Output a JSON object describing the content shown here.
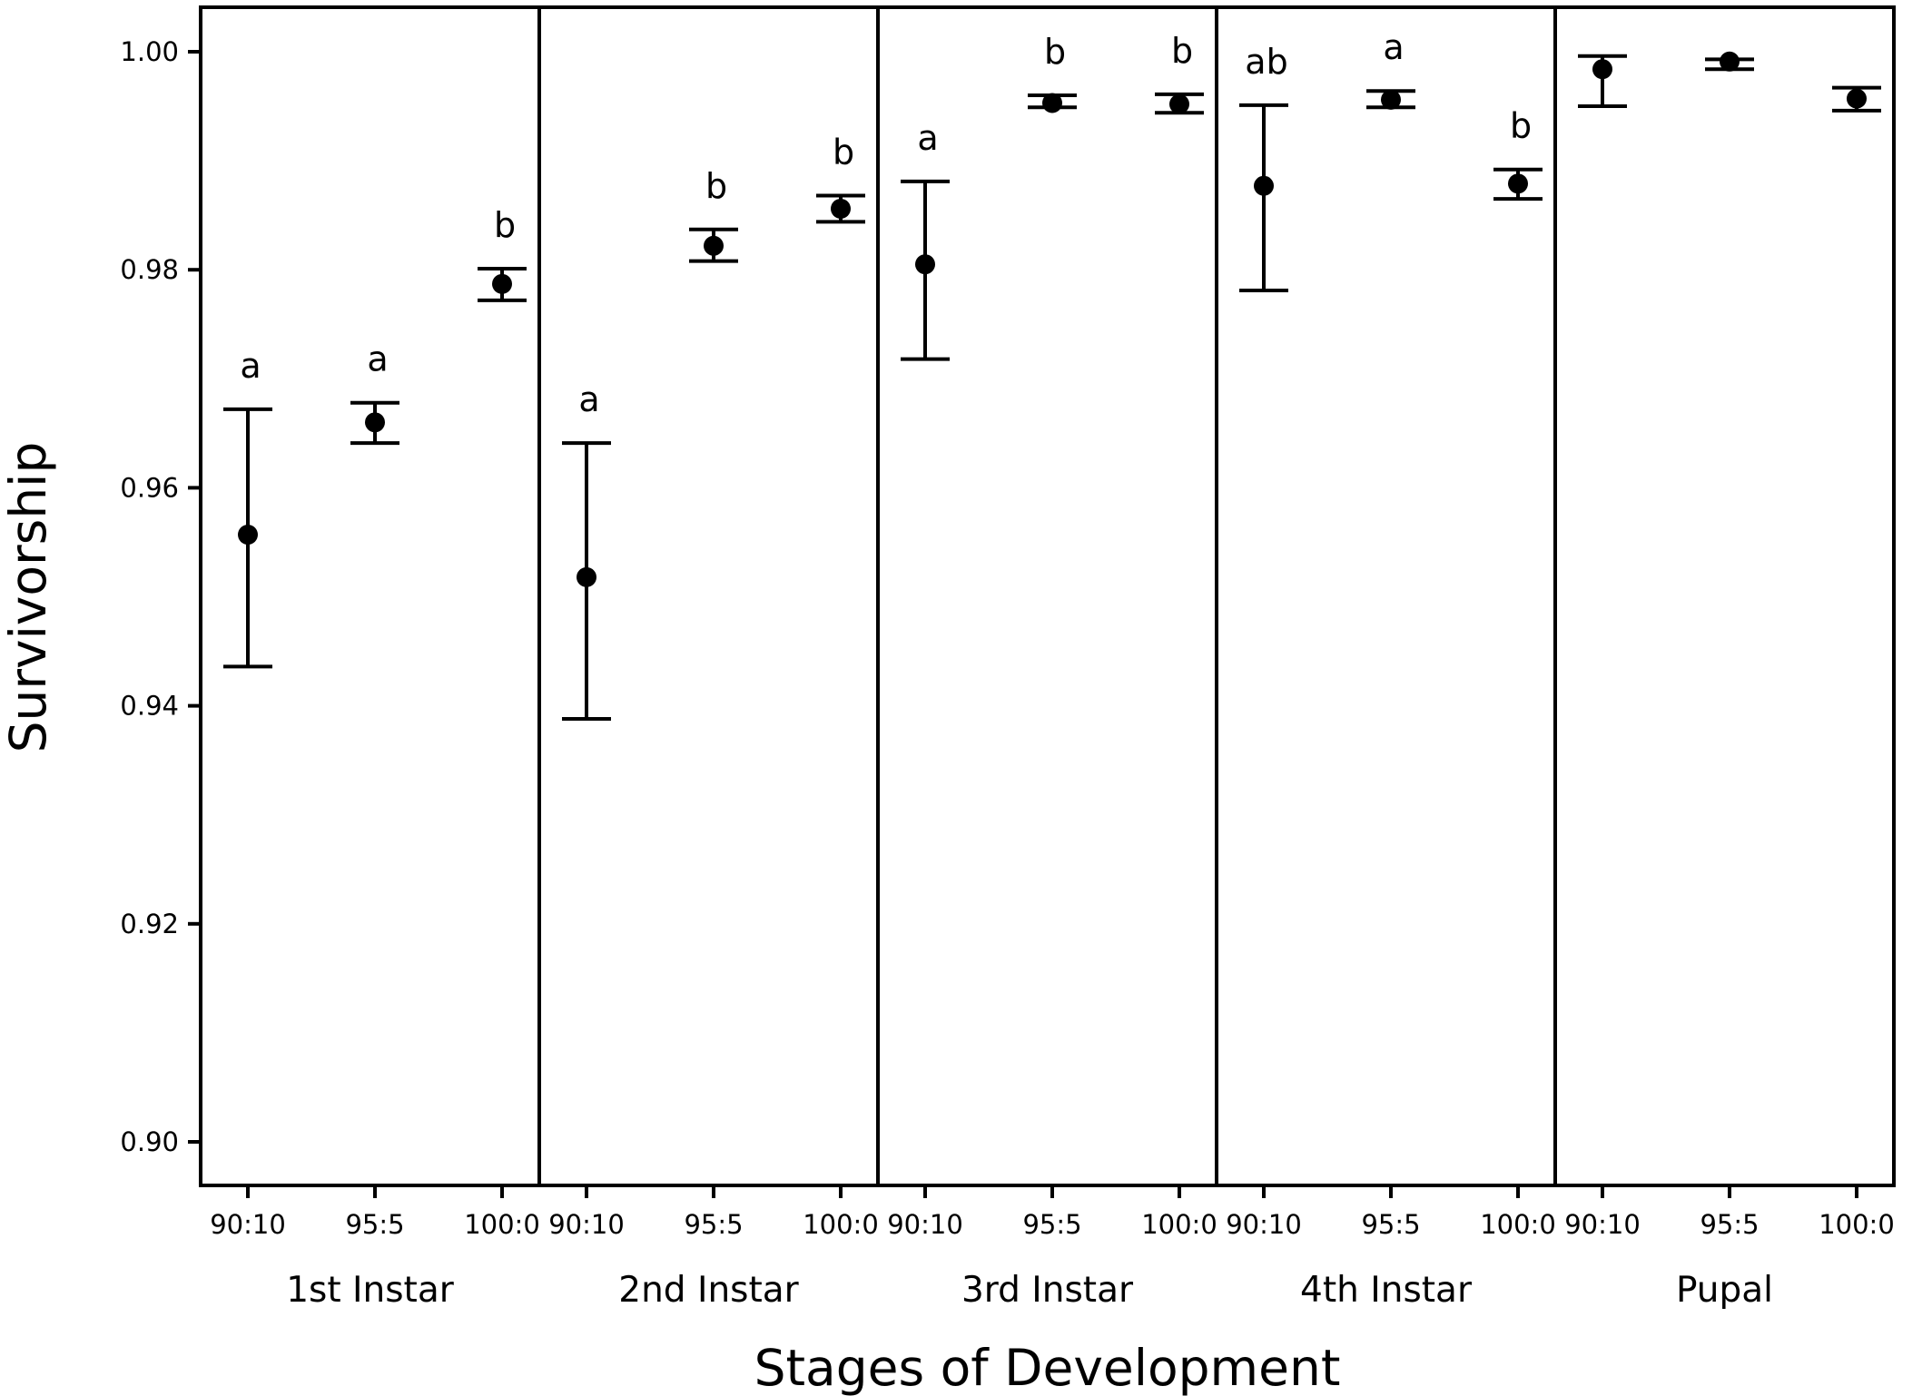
{
  "chart_data": {
    "type": "scatter",
    "title": "",
    "xlabel": "Stages of Development",
    "ylabel": "Survivorship",
    "ylim": [
      0.896,
      1.004
    ],
    "yticks": [
      0.9,
      0.92,
      0.94,
      0.96,
      0.98,
      1.0
    ],
    "ytick_labels": [
      "0.90",
      "0.92",
      "0.94",
      "0.96",
      "0.98",
      "1.00"
    ],
    "categories": [
      "90:10",
      "95:5",
      "100:0"
    ],
    "grid": false,
    "legend": "none",
    "error_bars": true,
    "marker_color": "#000000",
    "panels": [
      {
        "name": "1st Instar",
        "points": [
          {
            "x": "90:10",
            "y": 0.9557,
            "lower": 0.9436,
            "upper": 0.9672,
            "letter": "a"
          },
          {
            "x": "95:5",
            "y": 0.966,
            "lower": 0.9641,
            "upper": 0.9678,
            "letter": "a"
          },
          {
            "x": "100:0",
            "y": 0.9787,
            "lower": 0.9772,
            "upper": 0.9801,
            "letter": "b"
          }
        ]
      },
      {
        "name": "2nd Instar",
        "points": [
          {
            "x": "90:10",
            "y": 0.9518,
            "lower": 0.9388,
            "upper": 0.9641,
            "letter": "a"
          },
          {
            "x": "95:5",
            "y": 0.9822,
            "lower": 0.9808,
            "upper": 0.9837,
            "letter": "b"
          },
          {
            "x": "100:0",
            "y": 0.9856,
            "lower": 0.9844,
            "upper": 0.9868,
            "letter": "b"
          }
        ]
      },
      {
        "name": "3rd Instar",
        "points": [
          {
            "x": "90:10",
            "y": 0.9805,
            "lower": 0.9718,
            "upper": 0.9881,
            "letter": "a"
          },
          {
            "x": "95:5",
            "y": 0.9953,
            "lower": 0.9949,
            "upper": 0.996,
            "letter": "b"
          },
          {
            "x": "100:0",
            "y": 0.9952,
            "lower": 0.9944,
            "upper": 0.9961,
            "letter": "b"
          }
        ]
      },
      {
        "name": "4th Instar",
        "points": [
          {
            "x": "90:10",
            "y": 0.9877,
            "lower": 0.9781,
            "upper": 0.9951,
            "letter": "ab"
          },
          {
            "x": "95:5",
            "y": 0.9956,
            "lower": 0.9949,
            "upper": 0.9964,
            "letter": "a"
          },
          {
            "x": "100:0",
            "y": 0.9879,
            "lower": 0.9865,
            "upper": 0.9892,
            "letter": "b"
          }
        ]
      },
      {
        "name": "Pupal",
        "points": [
          {
            "x": "90:10",
            "y": 0.9984,
            "lower": 0.995,
            "upper": 0.9996,
            "letter": ""
          },
          {
            "x": "95:5",
            "y": 0.9991,
            "lower": 0.9984,
            "upper": 0.9993,
            "letter": ""
          },
          {
            "x": "100:0",
            "y": 0.9957,
            "lower": 0.9946,
            "upper": 0.9967,
            "letter": ""
          }
        ]
      }
    ]
  }
}
